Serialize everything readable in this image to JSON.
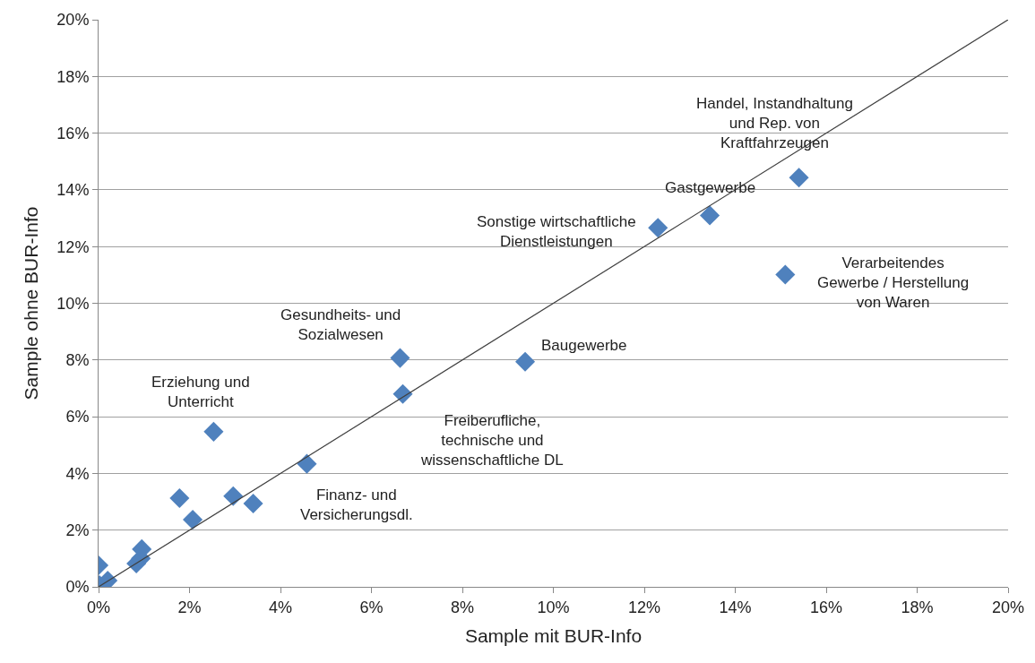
{
  "chart_data": {
    "type": "scatter",
    "xlabel": "Sample mit BUR-Info",
    "ylabel": "Sample ohne BUR-Info",
    "xlim": [
      0,
      20
    ],
    "ylim": [
      0,
      20
    ],
    "xticks": [
      {
        "value": 0,
        "label": "0%"
      },
      {
        "value": 2,
        "label": "2%"
      },
      {
        "value": 4,
        "label": "4%"
      },
      {
        "value": 6,
        "label": "6%"
      },
      {
        "value": 8,
        "label": "8%"
      },
      {
        "value": 10,
        "label": "10%"
      },
      {
        "value": 12,
        "label": "12%"
      },
      {
        "value": 14,
        "label": "14%"
      },
      {
        "value": 16,
        "label": "16%"
      },
      {
        "value": 18,
        "label": "18%"
      },
      {
        "value": 20,
        "label": "20%"
      }
    ],
    "yticks": [
      {
        "value": 0,
        "label": "0%"
      },
      {
        "value": 2,
        "label": "2%"
      },
      {
        "value": 4,
        "label": "4%"
      },
      {
        "value": 6,
        "label": "6%"
      },
      {
        "value": 8,
        "label": "8%"
      },
      {
        "value": 10,
        "label": "10%"
      },
      {
        "value": 12,
        "label": "12%"
      },
      {
        "value": 14,
        "label": "14%"
      },
      {
        "value": 16,
        "label": "16%"
      },
      {
        "value": 18,
        "label": "18%"
      },
      {
        "value": 20,
        "label": "20%"
      }
    ],
    "grid": "y",
    "legend": false,
    "marker": "diamond",
    "series": [
      {
        "color": "#4f81bd",
        "x": [
          0.0,
          0.02,
          0.2,
          0.83,
          0.93,
          0.95,
          1.78,
          2.07,
          2.53,
          2.96,
          3.4,
          4.58,
          6.63,
          6.69,
          9.38,
          12.3,
          13.44,
          15.1,
          15.4
        ],
        "values": [
          0.76,
          0.06,
          0.22,
          0.82,
          1.0,
          1.33,
          3.13,
          2.37,
          5.47,
          3.2,
          2.94,
          4.34,
          8.07,
          6.8,
          7.94,
          12.66,
          13.1,
          11.01,
          14.43
        ]
      },
      {
        "type": "line",
        "color": "#404040",
        "x": [
          0,
          20
        ],
        "values": [
          0,
          20
        ],
        "marker": "none"
      }
    ],
    "annotations": [
      {
        "text": "Handel, Instandhaltung\nund Rep. von\nKraftfahrzeugen",
        "x": 15.4,
        "y": 14.43
      },
      {
        "text": "Gastgewerbe",
        "x": 13.44,
        "y": 13.1
      },
      {
        "text": "Sonstige wirtschaftliche\nDienstleistungen",
        "x": 12.3,
        "y": 12.66
      },
      {
        "text": "Verarbeitendes\nGewerbe / Herstellung\nvon Waren",
        "x": 15.1,
        "y": 11.01
      },
      {
        "text": "Gesundheits- und\nSozialwesen",
        "x": 6.63,
        "y": 8.07
      },
      {
        "text": "Baugewerbe",
        "x": 9.38,
        "y": 7.94
      },
      {
        "text": "Erziehung und\nUnterricht",
        "x": 2.53,
        "y": 5.47
      },
      {
        "text": "Freiberufliche,\ntechnische und\nwissenschaftliche DL",
        "x": 6.69,
        "y": 6.8
      },
      {
        "text": "Finanz- und\nVersicherungsdl.",
        "x": 4.58,
        "y": 4.34
      }
    ]
  }
}
